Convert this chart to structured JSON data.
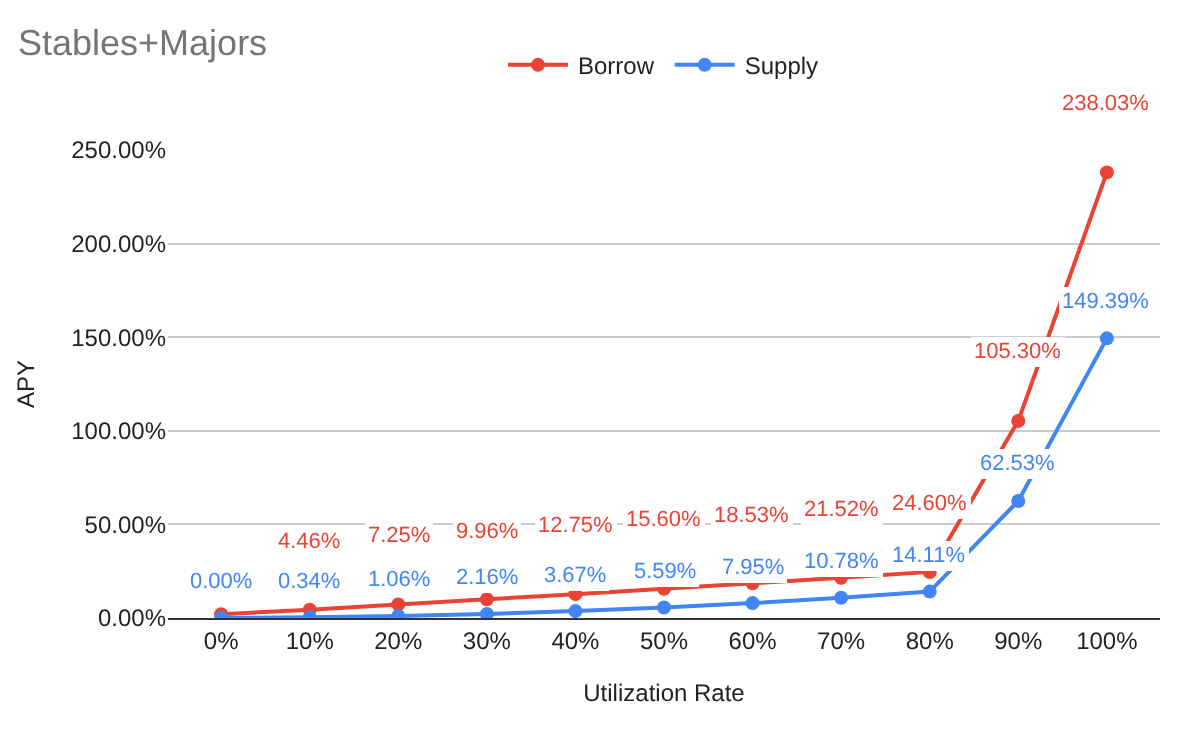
{
  "chart_data": {
    "type": "line",
    "title": "Stables+Majors",
    "xlabel": "Utilization Rate",
    "ylabel": "APY",
    "categories": [
      "0%",
      "10%",
      "20%",
      "30%",
      "40%",
      "50%",
      "60%",
      "70%",
      "80%",
      "90%",
      "100%"
    ],
    "series": [
      {
        "name": "Borrow",
        "color": "#ea4335",
        "values": [
          2.0,
          4.46,
          7.25,
          9.96,
          12.75,
          15.6,
          18.53,
          21.52,
          24.6,
          105.3,
          238.03
        ],
        "value_labels": [
          null,
          "4.46%",
          "7.25%",
          "9.96%",
          "12.75%",
          "15.60%",
          "18.53%",
          "21.52%",
          "24.60%",
          "105.30%",
          "238.03%"
        ]
      },
      {
        "name": "Supply",
        "color": "#4285f4",
        "values": [
          0.0,
          0.34,
          1.06,
          2.16,
          3.67,
          5.59,
          7.95,
          10.78,
          14.11,
          62.53,
          149.39
        ],
        "value_labels": [
          "0.00%",
          "0.34%",
          "1.06%",
          "2.16%",
          "3.67%",
          "5.59%",
          "7.95%",
          "10.78%",
          "14.11%",
          "62.53%",
          "149.39%"
        ]
      }
    ],
    "ylim": [
      0,
      250
    ],
    "yticks": [
      {
        "value": 0,
        "label": "0.00%"
      },
      {
        "value": 50,
        "label": "50.00%"
      },
      {
        "value": 100,
        "label": "100.00%"
      },
      {
        "value": 150,
        "label": "150.00%"
      },
      {
        "value": 200,
        "label": "200.00%"
      },
      {
        "value": 250,
        "label": "250.00%"
      }
    ],
    "grid": "y",
    "legend": "top",
    "marker": "circle",
    "line_style": "solid"
  }
}
